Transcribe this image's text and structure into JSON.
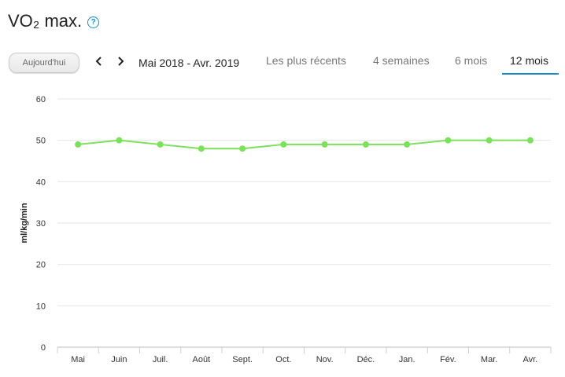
{
  "header": {
    "title": "VO₂ max.",
    "help_icon": "help-circle-icon"
  },
  "toolbar": {
    "today_label": "Aujourd'hui",
    "prev_icon": "chevron-left-icon",
    "next_icon": "chevron-right-icon",
    "date_range": "Mai 2018 - Avr. 2019"
  },
  "range_tabs": [
    {
      "label": "Les plus récents",
      "active": false
    },
    {
      "label": "4 semaines",
      "active": false
    },
    {
      "label": "6 mois",
      "active": false
    },
    {
      "label": "12 mois",
      "active": true
    }
  ],
  "colors": {
    "accent": "#1a8bc6",
    "series": "#7be05a"
  },
  "chart_data": {
    "type": "line",
    "title": "",
    "xlabel": "",
    "ylabel": "ml/kg/min",
    "categories": [
      "Mai",
      "Juin",
      "Juil.",
      "Août",
      "Sept.",
      "Oct.",
      "Nov.",
      "Déc.",
      "Jan.",
      "Fév.",
      "Mar.",
      "Avr."
    ],
    "series": [
      {
        "values": [
          49,
          50,
          49,
          48,
          48,
          49,
          49,
          49,
          49,
          50,
          50,
          50
        ]
      }
    ],
    "ylim": [
      0,
      60
    ],
    "yticks": [
      0,
      10,
      20,
      30,
      40,
      50,
      60
    ],
    "grid": true,
    "legend": "none"
  }
}
